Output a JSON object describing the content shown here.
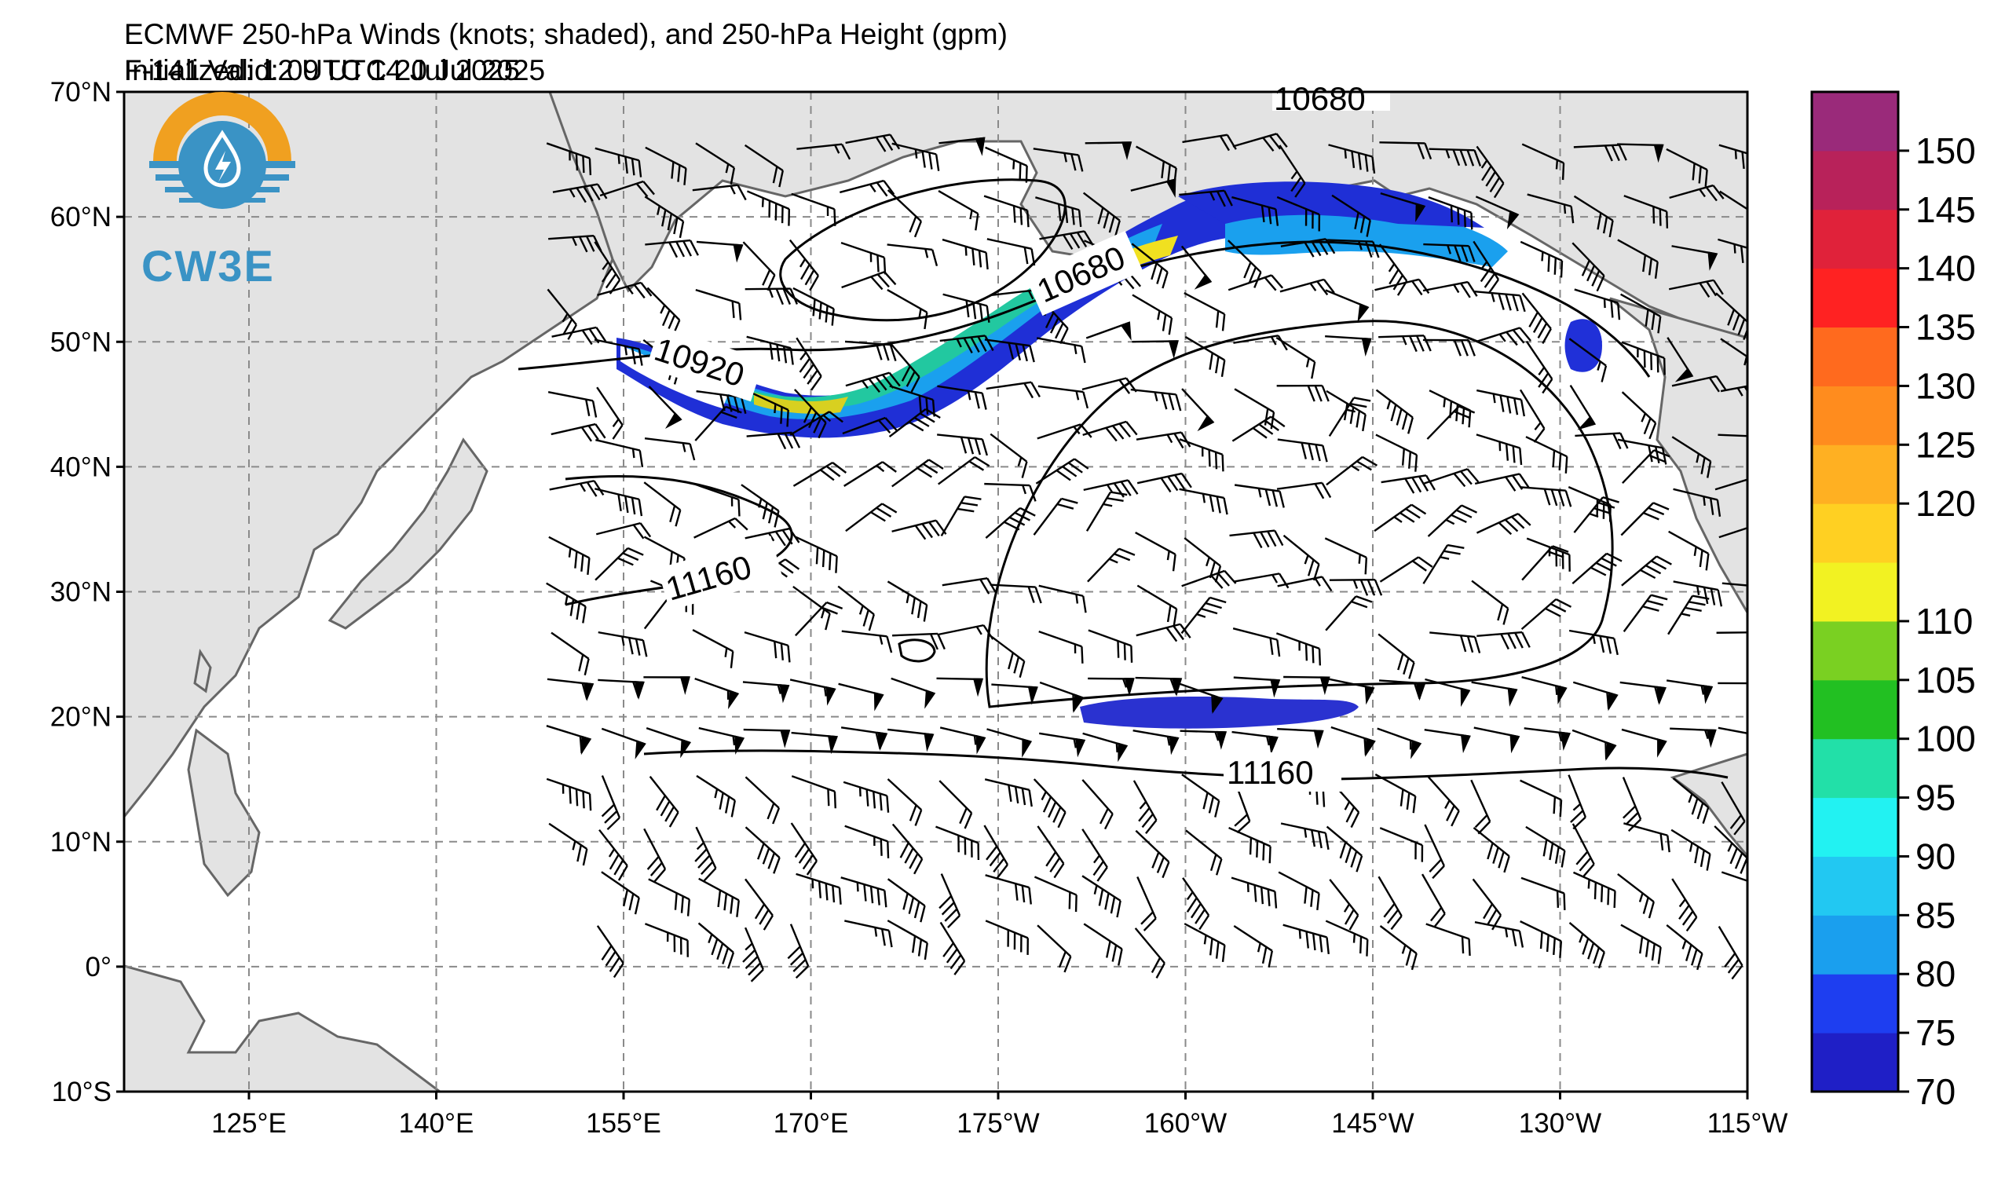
{
  "header": {
    "title": "ECMWF 250-hPa Winds (knots; shaded), and 250-hPa Height (gpm)",
    "initialized": "Initialized: 12 UTC 14 Jul 2025",
    "valid": "F-141  Valid: 09 UTC 20 Jul 2025"
  },
  "logo": {
    "text": "CW3E"
  },
  "map": {
    "lon_labels": [
      "125°E",
      "140°E",
      "155°E",
      "170°E",
      "175°W",
      "160°W",
      "145°W",
      "130°W",
      "115°W"
    ],
    "lat_labels": [
      "70°N",
      "60°N",
      "50°N",
      "40°N",
      "30°N",
      "20°N",
      "10°N",
      "0°",
      "10°S"
    ],
    "lon_range": [
      115,
      245
    ],
    "lat_range": [
      -10,
      70
    ],
    "grid": true,
    "contour_labels": [
      "10680",
      "10680",
      "10920",
      "11160",
      "11160"
    ]
  },
  "colorbar": {
    "ticks": [
      "70",
      "75",
      "80",
      "85",
      "90",
      "95",
      "100",
      "105",
      "110",
      "115",
      "120",
      "125",
      "130",
      "135",
      "140",
      "145",
      "150",
      "155"
    ],
    "colors": [
      "#1f1fc6",
      "#1e3ef0",
      "#1a9fee",
      "#22c8f2",
      "#22f2f2",
      "#22e0a8",
      "#22c022",
      "#7ad022",
      "#f2f222",
      "#ffd022",
      "#ffb022",
      "#ff8c1e",
      "#ff6a1e",
      "#ff2222",
      "#e0223a",
      "#b8225a",
      "#9a2a7a",
      "#7a2a8a"
    ],
    "labels": [
      "70",
      "75",
      "80",
      "85",
      "90",
      "95",
      "100",
      "105",
      "110",
      "120",
      "125",
      "130",
      "135",
      "140",
      "145",
      "150"
    ]
  }
}
